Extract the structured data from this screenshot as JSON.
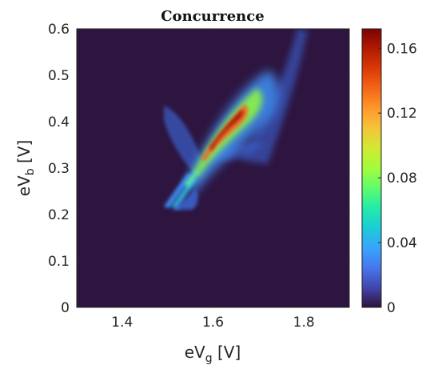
{
  "chart_data": {
    "type": "heatmap",
    "title": "Concurrence",
    "xlabel": {
      "base": "eV",
      "sub": "g",
      "unit": " [V]"
    },
    "ylabel": {
      "base": "eV",
      "sub": "b",
      "unit": " [V]"
    },
    "xlim": [
      1.3,
      1.9
    ],
    "ylim": [
      0,
      0.6
    ],
    "x_ticks": [
      "1.4",
      "1.6",
      "1.8"
    ],
    "x_tick_values": [
      1.4,
      1.6,
      1.8
    ],
    "y_ticks": [
      "0",
      "0.1",
      "0.2",
      "0.3",
      "0.4",
      "0.5",
      "0.6"
    ],
    "y_tick_values": [
      0,
      0.1,
      0.2,
      0.3,
      0.4,
      0.5,
      0.6
    ],
    "colorbar": {
      "min": 0,
      "max": 0.172,
      "ticks": [
        "0",
        "0.04",
        "0.08",
        "0.12",
        "0.16"
      ],
      "tick_values": [
        0,
        0.04,
        0.08,
        0.12,
        0.16
      ],
      "colormap": "turbo"
    },
    "background_color": "#2e1540",
    "features": [
      {
        "name": "main-band",
        "description": "diagonal high-concurrence band",
        "peak_x": 1.635,
        "peak_y": 0.405,
        "peak_value": 0.17
      },
      {
        "name": "upper-tail",
        "x_range": [
          1.66,
          1.8
        ],
        "y_range": [
          0.45,
          0.6
        ],
        "approx_value": 0.04
      },
      {
        "name": "lower-crossing",
        "x": 1.545,
        "y": 0.29,
        "approx_value": 0.08
      }
    ]
  }
}
